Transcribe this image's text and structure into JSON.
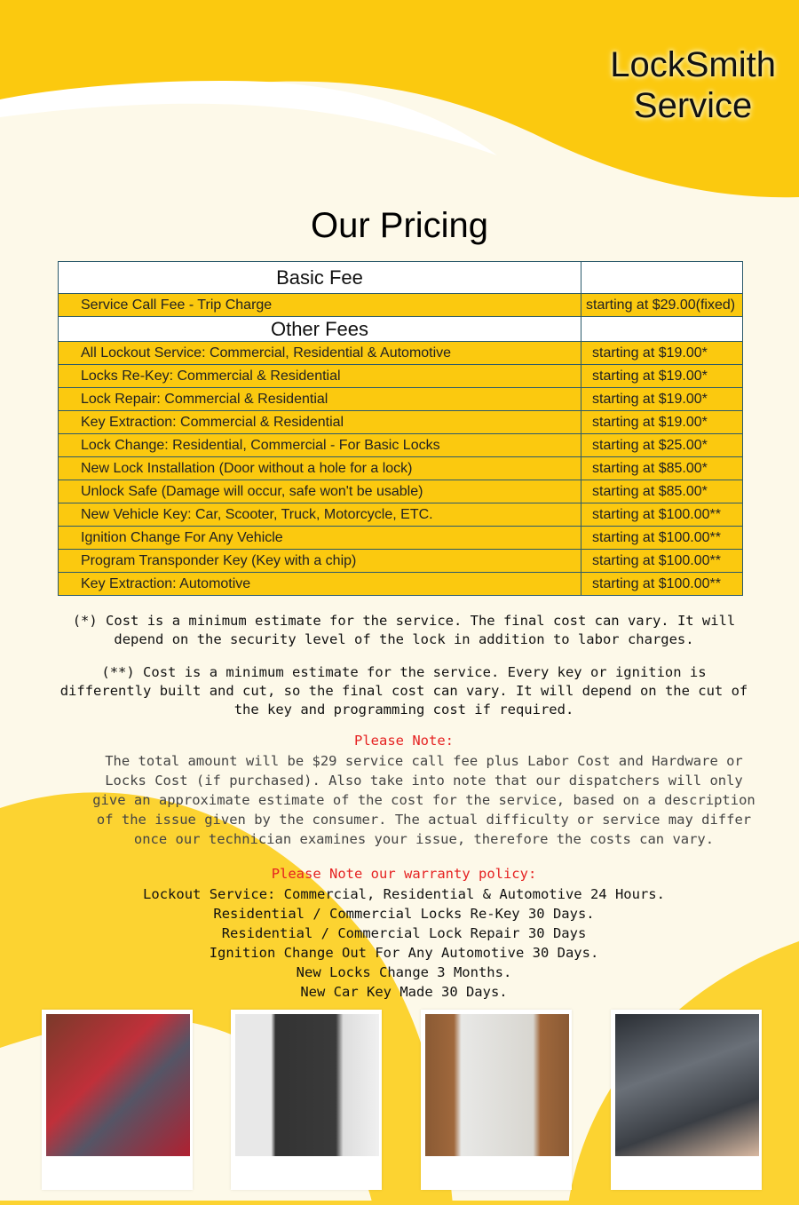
{
  "brand": {
    "line1": "LockSmith",
    "line2": "Service"
  },
  "title": "Our Pricing",
  "table": {
    "basic_header": "Basic Fee",
    "basic_rows": [
      {
        "service": "Service Call Fee - Trip Charge",
        "price": "starting at $29.00(fixed)"
      }
    ],
    "other_header": "Other Fees",
    "other_rows": [
      {
        "service": "All Lockout Service: Commercial, Residential & Automotive",
        "price": "starting at $19.00*"
      },
      {
        "service": "Locks Re-Key: Commercial & Residential",
        "price": "starting at $19.00*"
      },
      {
        "service": "Lock Repair: Commercial & Residential",
        "price": "starting at $19.00*"
      },
      {
        "service": "Key Extraction: Commercial & Residential",
        "price": "starting at $19.00*"
      },
      {
        "service": "Lock Change: Residential, Commercial - For Basic Locks",
        "price": "starting at $25.00*"
      },
      {
        "service": "New Lock Installation (Door without a hole for a lock)",
        "price": "starting at $85.00*"
      },
      {
        "service": "Unlock Safe (Damage will occur, safe won't be usable)",
        "price": "starting at $85.00*"
      },
      {
        "service": "New Vehicle Key: Car, Scooter, Truck, Motorcycle, ETC.",
        "price": "starting at $100.00**"
      },
      {
        "service": "Ignition Change For Any Vehicle",
        "price": "starting at $100.00**"
      },
      {
        "service": "Program Transponder Key (Key with a chip)",
        "price": "starting at $100.00**"
      },
      {
        "service": "Key Extraction: Automotive",
        "price": "starting at $100.00**"
      }
    ]
  },
  "notes": {
    "single_star": "(*) Cost is a minimum estimate for the service. The final cost can vary. It will depend on the security level of the lock in addition to labor charges.",
    "double_star": "(**) Cost is a minimum estimate for the service. Every key or ignition is differently built and cut, so the final cost can vary. It will depend on the cut of the key and programming cost if required.",
    "please_note_label": "Please Note:",
    "please_note_text": "The total amount will be $29 service call fee plus Labor Cost and Hardware or Locks Cost (if purchased). Also take into note that our dispatchers will only give an approximate estimate of the cost for the service, based on a description of the issue given by the consumer. The actual difficulty or service may differ once our technician examines your issue, therefore the costs can vary.",
    "warranty_label": "Please Note our warranty policy:",
    "warranty": [
      "Lockout Service: Commercial, Residential & Automotive 24 Hours.",
      "Residential / Commercial Locks Re-Key 30 Days.",
      "Residential / Commercial Lock Repair 30 Days",
      "Ignition Change Out For Any Automotive 30 Days.",
      "New Locks Change 3 Months.",
      "New Car Key Made 30 Days."
    ]
  },
  "colors": {
    "yellow": "#fbc90f",
    "cream": "#fdf9e9",
    "red": "#e52222"
  },
  "photos": [
    "car-door-lockpick-photo",
    "keypad-lock-photo",
    "door-key-photo",
    "car-ignition-key-photo"
  ]
}
